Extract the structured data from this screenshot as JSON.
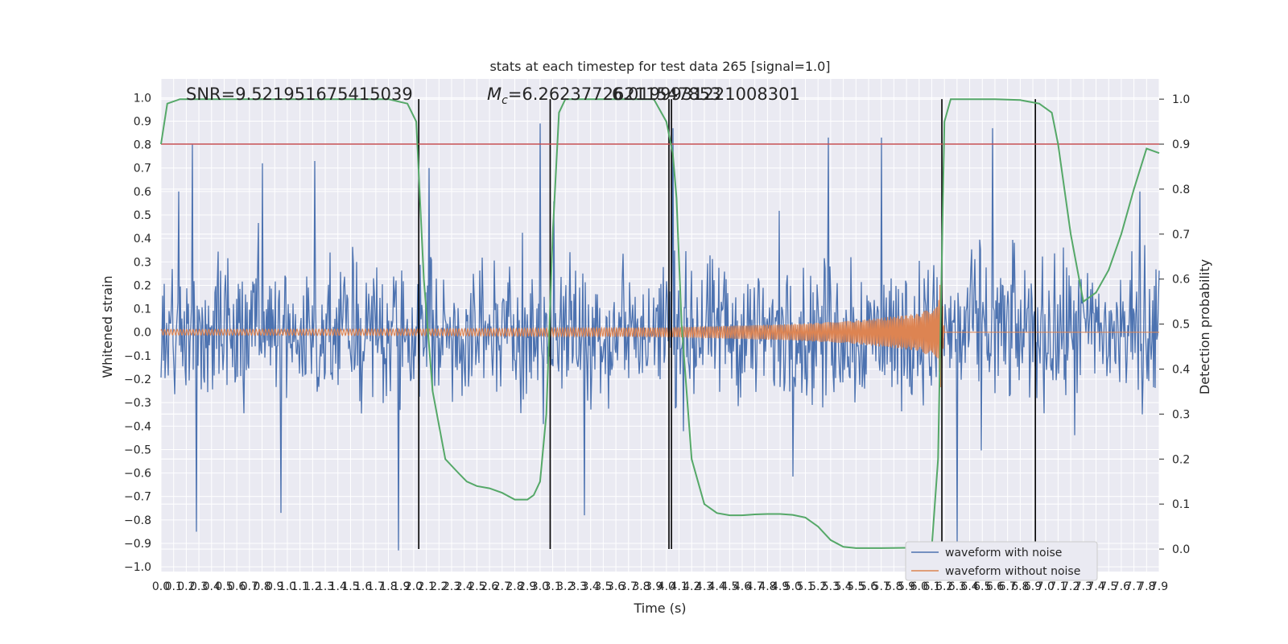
{
  "chart_data": {
    "type": "line",
    "title": "stats at each timestep for test data 265 [signal=1.0]",
    "xlabel": "Time (s)",
    "ylabel": "Whitened strain",
    "y2label": "Detection probability",
    "xlim": [
      0,
      7.9
    ],
    "ylim": [
      -1.02,
      1.08
    ],
    "y2lim": [
      -0.05,
      1.045
    ],
    "x_tick_step": 0.1,
    "y_ticks": [
      -1.0,
      -0.9,
      -0.8,
      -0.7,
      -0.6,
      -0.5,
      -0.4,
      -0.3,
      -0.2,
      -0.1,
      0.0,
      0.1,
      0.2,
      0.3,
      0.4,
      0.5,
      0.6,
      0.7,
      0.8,
      0.9,
      1.0
    ],
    "y2_ticks": [
      0.0,
      0.1,
      0.2,
      0.3,
      0.4,
      0.5,
      0.6,
      0.7,
      0.8,
      0.9,
      1.0
    ],
    "grid": true,
    "legend_position": "lower-right",
    "annotations": {
      "snr": "SNR=9.521951675415039",
      "mc_symbol": "M",
      "mc_sub": "c",
      "mc_value": "=6.26237726211547853",
      "overlap": "6.0199931221008301"
    },
    "series": [
      {
        "name": "waveform with noise",
        "color": "#4c72b0",
        "description_values": {
          "typical_low": -0.4,
          "typical_high": 0.4
        },
        "peaks": [
          {
            "x": 0.14,
            "y": 0.6
          },
          {
            "x": 0.25,
            "y": 0.8
          },
          {
            "x": 0.28,
            "y": -0.85
          },
          {
            "x": 0.8,
            "y": 0.72
          },
          {
            "x": 0.95,
            "y": -0.77
          },
          {
            "x": 1.22,
            "y": 0.73
          },
          {
            "x": 1.88,
            "y": -0.93
          },
          {
            "x": 2.12,
            "y": 0.7
          },
          {
            "x": 3.0,
            "y": 0.89
          },
          {
            "x": 3.35,
            "y": -0.78
          },
          {
            "x": 4.05,
            "y": 0.87
          },
          {
            "x": 5.28,
            "y": 0.83
          },
          {
            "x": 5.7,
            "y": 0.83
          },
          {
            "x": 6.3,
            "y": -0.93
          },
          {
            "x": 6.58,
            "y": 0.87
          },
          {
            "x": 7.75,
            "y": 0.6
          }
        ]
      },
      {
        "name": "waveform without noise",
        "color": "#dd8452",
        "amplitude_envelope": {
          "x": [
            0,
            2,
            4,
            5,
            5.5,
            6.0,
            6.15,
            6.17,
            6.2,
            7.9
          ],
          "y": [
            0.012,
            0.014,
            0.02,
            0.035,
            0.05,
            0.08,
            0.12,
            0.25,
            0.0,
            0.0
          ]
        }
      },
      {
        "name": "detection probability",
        "color": "#55a868",
        "axis": "right",
        "x": [
          0.0,
          0.05,
          0.15,
          0.3,
          0.6,
          1.0,
          1.4,
          1.8,
          1.95,
          2.02,
          2.08,
          2.15,
          2.25,
          2.35,
          2.42,
          2.5,
          2.6,
          2.7,
          2.8,
          2.9,
          2.95,
          3.0,
          3.05,
          3.1,
          3.15,
          3.2,
          3.3,
          3.6,
          3.9,
          4.0,
          4.05,
          4.08,
          4.12,
          4.2,
          4.3,
          4.4,
          4.5,
          4.6,
          4.7,
          4.8,
          4.9,
          5.0,
          5.1,
          5.2,
          5.3,
          5.4,
          5.5,
          5.7,
          6.0,
          6.1,
          6.15,
          6.2,
          6.25,
          6.3,
          6.4,
          6.6,
          6.8,
          6.95,
          7.05,
          7.1,
          7.2,
          7.3,
          7.4,
          7.5,
          7.6,
          7.7,
          7.8,
          7.9
        ],
        "y": [
          0.9,
          0.99,
          1.0,
          1.0,
          1.0,
          1.0,
          1.0,
          1.0,
          0.99,
          0.95,
          0.6,
          0.35,
          0.2,
          0.17,
          0.15,
          0.14,
          0.135,
          0.125,
          0.11,
          0.11,
          0.12,
          0.15,
          0.3,
          0.7,
          0.97,
          1.0,
          1.0,
          1.0,
          1.0,
          0.95,
          0.88,
          0.78,
          0.5,
          0.2,
          0.1,
          0.08,
          0.075,
          0.075,
          0.077,
          0.078,
          0.078,
          0.076,
          0.07,
          0.05,
          0.02,
          0.005,
          0.002,
          0.002,
          0.003,
          0.005,
          0.2,
          0.95,
          1.0,
          1.0,
          1.0,
          1.0,
          0.998,
          0.99,
          0.97,
          0.9,
          0.7,
          0.55,
          0.57,
          0.62,
          0.7,
          0.8,
          0.89,
          0.88
        ]
      }
    ],
    "threshold_line": {
      "y": 0.9,
      "axis": "right",
      "color": "#c44e52"
    },
    "vertical_markers": {
      "x": [
        2.04,
        3.08,
        4.02,
        4.04,
        6.18,
        6.92
      ],
      "color": "#000000"
    }
  }
}
